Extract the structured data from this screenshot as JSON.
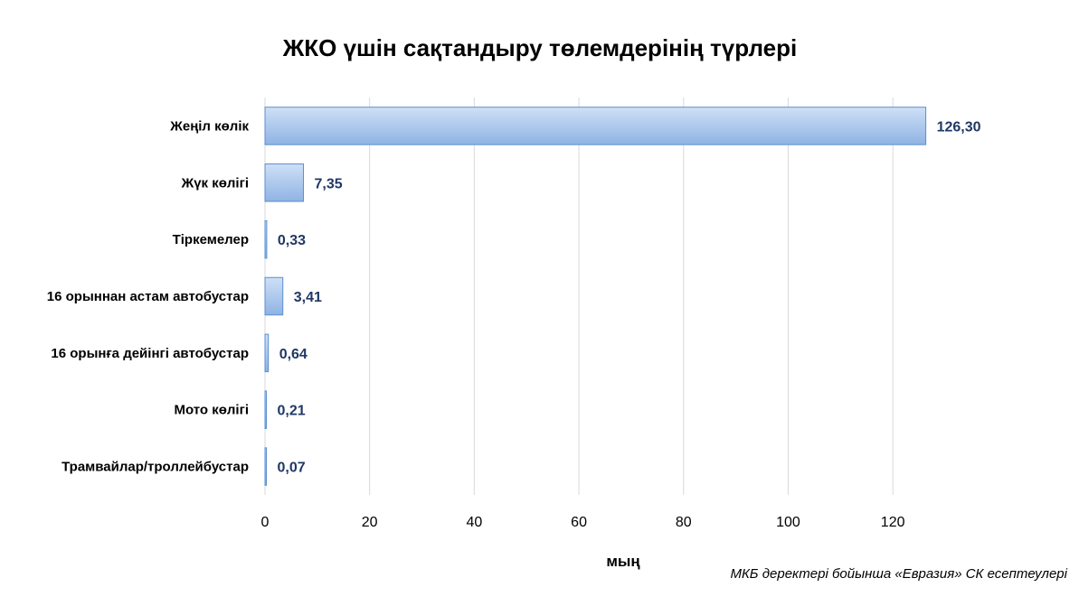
{
  "chart_data": {
    "type": "bar",
    "orientation": "horizontal",
    "title": "ЖКО үшін сақтандыру төлемдерінің түрлері",
    "categories": [
      "Жеңіл көлік",
      "Жүк көлігі",
      "Тіркемелер",
      "16 орыннан астам автобустар",
      "16 орынға дейінгі автобустар",
      "Мото көлігі",
      "Трамвайлар/троллейбустар"
    ],
    "values": [
      126.3,
      7.35,
      0.33,
      3.41,
      0.64,
      0.21,
      0.07
    ],
    "data_labels": [
      "126,30",
      "7,35",
      "0,33",
      "3,41",
      "0,64",
      "0,21",
      "0,07"
    ],
    "xlabel": "мың",
    "ylabel": "",
    "xlim": [
      0,
      130
    ],
    "xticks": [
      0,
      20,
      40,
      60,
      80,
      100,
      120
    ],
    "xtick_labels": [
      "0",
      "20",
      "40",
      "60",
      "80",
      "100",
      "120"
    ],
    "grid": true,
    "legend": "none",
    "bar_color": "#a9c5ec",
    "bar_edge_color": "#5b8fd0"
  },
  "source_note": "МКБ деректері бойынша «Евразия» СК есептеулері"
}
